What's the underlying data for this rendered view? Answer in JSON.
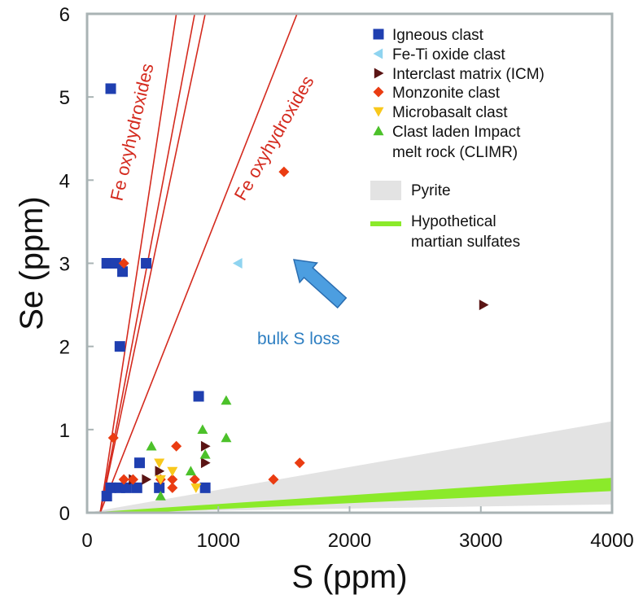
{
  "chart_data": {
    "type": "scatter",
    "xlabel": "S (ppm)",
    "ylabel": "Se (ppm)",
    "xlim": [
      0,
      4000
    ],
    "ylim": [
      0,
      6
    ],
    "xticks": [
      "0",
      "1000",
      "2000",
      "3000",
      "4000"
    ],
    "yticks": [
      "0",
      "1",
      "2",
      "3",
      "4",
      "5",
      "6"
    ],
    "grid": false,
    "legend_position": "top-right",
    "series": [
      {
        "name": "Igneous clast",
        "marker": "square",
        "color": "#1f3fb0",
        "points": [
          [
            180,
            5.1
          ],
          [
            150,
            3.0
          ],
          [
            220,
            3.0
          ],
          [
            270,
            2.9
          ],
          [
            450,
            3.0
          ],
          [
            250,
            2.0
          ],
          [
            850,
            1.4
          ],
          [
            400,
            0.6
          ],
          [
            150,
            0.2
          ],
          [
            180,
            0.3
          ],
          [
            250,
            0.3
          ],
          [
            300,
            0.3
          ],
          [
            380,
            0.3
          ],
          [
            550,
            0.3
          ],
          [
            900,
            0.3
          ]
        ]
      },
      {
        "name": "Fe-Ti oxide clast",
        "marker": "triangle-left",
        "color": "#8fd4f0",
        "points": [
          [
            1150,
            3.0
          ]
        ]
      },
      {
        "name": "Interclast matrix (ICM)",
        "marker": "triangle-right",
        "color": "#5a1414",
        "points": [
          [
            3020,
            2.5
          ],
          [
            900,
            0.8
          ],
          [
            900,
            0.6
          ],
          [
            550,
            0.5
          ],
          [
            450,
            0.4
          ],
          [
            350,
            0.4
          ]
        ]
      },
      {
        "name": "Monzonite clast",
        "marker": "diamond",
        "color": "#ea3c12",
        "points": [
          [
            1500,
            4.1
          ],
          [
            280,
            3.0
          ],
          [
            200,
            0.9
          ],
          [
            680,
            0.8
          ],
          [
            1620,
            0.6
          ],
          [
            1420,
            0.4
          ],
          [
            650,
            0.4
          ],
          [
            650,
            0.3
          ],
          [
            820,
            0.4
          ],
          [
            560,
            0.4
          ],
          [
            280,
            0.4
          ],
          [
            350,
            0.4
          ]
        ]
      },
      {
        "name": "Microbasalt clast",
        "marker": "triangle-down",
        "color": "#f8c81c",
        "points": [
          [
            550,
            0.6
          ],
          [
            650,
            0.5
          ],
          [
            830,
            0.3
          ],
          [
            560,
            0.4
          ]
        ]
      },
      {
        "name": "Clast laden Impact melt rock (CLIMR)",
        "marker": "triangle-up",
        "color": "#4cc12a",
        "points": [
          [
            1060,
            1.35
          ],
          [
            880,
            1.0
          ],
          [
            1060,
            0.9
          ],
          [
            490,
            0.8
          ],
          [
            900,
            0.7
          ],
          [
            790,
            0.5
          ],
          [
            560,
            0.2
          ]
        ]
      }
    ],
    "fields": [
      {
        "name": "Pyrite",
        "kind": "shaded region",
        "color": "#e3e3e3"
      },
      {
        "name": "Hypothetical martian sulfates",
        "kind": "band",
        "color": "#8bea2a"
      }
    ],
    "lines": [
      {
        "name": "Fe oxyhydroxides",
        "from": [
          100,
          0.0
        ],
        "to": [
          680,
          6.0
        ]
      },
      {
        "name": "Fe oxyhydroxides",
        "from": [
          100,
          0.0
        ],
        "to": [
          820,
          6.0
        ]
      },
      {
        "name": "Fe oxyhydroxides",
        "from": [
          100,
          0.0
        ],
        "to": [
          900,
          6.0
        ]
      },
      {
        "name": "Fe oxyhydroxides",
        "from": [
          100,
          0.0
        ],
        "to": [
          1600,
          6.0
        ]
      }
    ],
    "annotations": [
      {
        "text": "Fe oxyhydroxides"
      },
      {
        "text": "Fe oxyhydroxides"
      },
      {
        "text": "bulk S loss",
        "color": "#2e7fc2"
      }
    ]
  }
}
